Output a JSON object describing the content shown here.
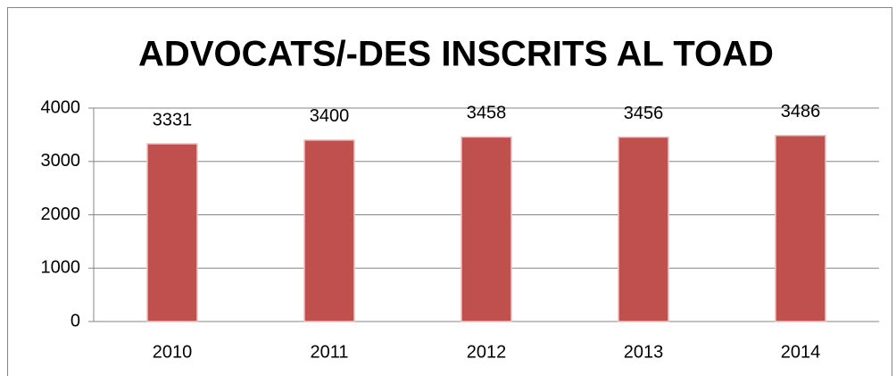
{
  "chart_data": {
    "type": "bar",
    "title": "ADVOCATS/-DES  INSCRITS AL TOAD",
    "categories": [
      "2010",
      "2011",
      "2012",
      "2013",
      "2014"
    ],
    "values": [
      3331,
      3400,
      3458,
      3456,
      3486
    ],
    "color": "#c0504d",
    "ylim": [
      0,
      4000
    ],
    "yticks": [
      0,
      1000,
      2000,
      3000,
      4000
    ],
    "grid": true
  }
}
